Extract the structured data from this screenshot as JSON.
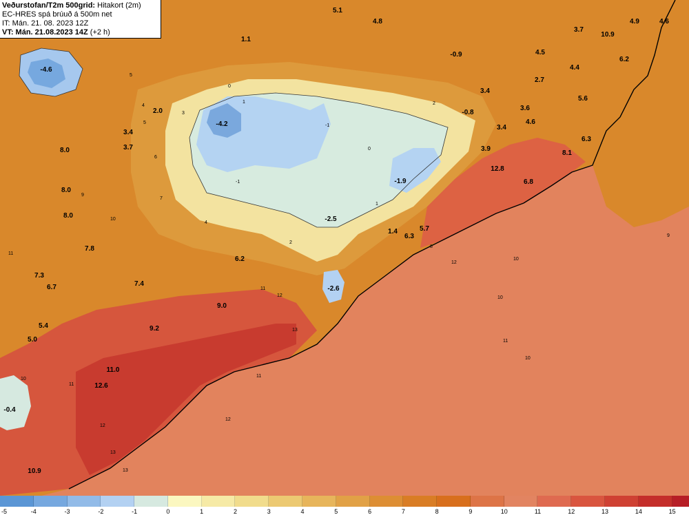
{
  "header": {
    "title_bold": "Veðurstofan/T2m 500grid:",
    "title_rest": " Hitakort (2m)",
    "model": "EC-HRES spá brúuð á 500m net",
    "init_time": "IT: Mán. 21. 08. 2023 12Z",
    "valid_bold": "VT: Mán. 21.08.2023 14Z",
    "valid_rest": " (+2 h)"
  },
  "temperature_labels": [
    {
      "value": "5.1"
    },
    {
      "value": "4.8"
    },
    {
      "value": "1.1"
    },
    {
      "value": "-4.6"
    },
    {
      "value": "-0.9"
    },
    {
      "value": "3.7"
    },
    {
      "value": "10.9"
    },
    {
      "value": "4.9"
    },
    {
      "value": "4.6"
    },
    {
      "value": "4.5"
    },
    {
      "value": "4.4"
    },
    {
      "value": "6.2"
    },
    {
      "value": "2.7"
    },
    {
      "value": "3.4"
    },
    {
      "value": "-0.8"
    },
    {
      "value": "3.6"
    },
    {
      "value": "5.6"
    },
    {
      "value": "2.0"
    },
    {
      "value": "-4.2"
    },
    {
      "value": "3.4"
    },
    {
      "value": "4.6"
    },
    {
      "value": "3.4"
    },
    {
      "value": "6.3"
    },
    {
      "value": "3.7"
    },
    {
      "value": "3.9"
    },
    {
      "value": "8.1"
    },
    {
      "value": "8.0"
    },
    {
      "value": "12.8"
    },
    {
      "value": "-1.9"
    },
    {
      "value": "6.8"
    },
    {
      "value": "8.0"
    },
    {
      "value": "8.0"
    },
    {
      "value": "-2.5"
    },
    {
      "value": "5.7"
    },
    {
      "value": "1.4"
    },
    {
      "value": "6.3"
    },
    {
      "value": "7.8"
    },
    {
      "value": "6.2"
    },
    {
      "value": "7.3"
    },
    {
      "value": "7.4"
    },
    {
      "value": "6.7"
    },
    {
      "value": "-2.6"
    },
    {
      "value": "9.0"
    },
    {
      "value": "5.4"
    },
    {
      "value": "9.2"
    },
    {
      "value": "5.0"
    },
    {
      "value": "11.0"
    },
    {
      "value": "12.6"
    },
    {
      "value": "-0.4"
    },
    {
      "value": "10.9"
    }
  ],
  "contour_labels": [
    "5",
    "4",
    "5",
    "6",
    "7",
    "9",
    "10",
    "11",
    "12",
    "13",
    "10",
    "11",
    "12",
    "13",
    "10",
    "11",
    "12",
    "2",
    "1",
    "0",
    "-1",
    "3",
    "4",
    "2",
    "1",
    "0",
    "-1",
    "8",
    "9",
    "10",
    "11",
    "10",
    "11",
    "12",
    "13"
  ],
  "colorbar": {
    "ticks": [
      "-5",
      "-4",
      "-3",
      "-2",
      "-1",
      "0",
      "1",
      "2",
      "3",
      "4",
      "5",
      "6",
      "7",
      "8",
      "9",
      "10",
      "11",
      "12",
      "13",
      "14",
      "15"
    ],
    "colors": [
      "#5b96d5",
      "#76a8df",
      "#92bbe8",
      "#b3d1f2",
      "#d6e9e0",
      "#fbf7c0",
      "#f6eaa6",
      "#f1dc8c",
      "#ecc972",
      "#e7b55b",
      "#e1a146",
      "#dd8e34",
      "#d97d25",
      "#d86f1d",
      "#dd7447",
      "#e28461",
      "#df6a50",
      "#d9553f",
      "#cf4133",
      "#c42e2a",
      "#b71e26"
    ]
  }
}
